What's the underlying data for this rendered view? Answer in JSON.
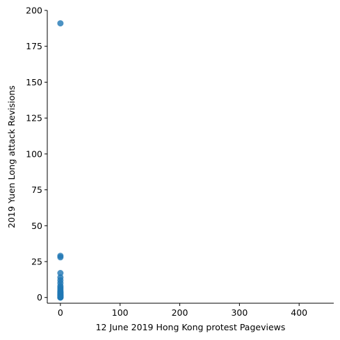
{
  "chart_data": {
    "type": "scatter",
    "xlabel": "12 June 2019 Hong Kong protest Pageviews",
    "ylabel": "2019 Yuen Long attack Revisions",
    "xlim": [
      -22,
      458
    ],
    "ylim": [
      -4,
      200
    ],
    "x_ticks": [
      0,
      100,
      200,
      300,
      400
    ],
    "y_ticks": [
      0,
      25,
      50,
      75,
      100,
      125,
      150,
      175,
      200
    ],
    "x_tick_labels": [
      "0",
      "100",
      "200",
      "300",
      "400"
    ],
    "y_tick_labels": [
      "0",
      "25",
      "50",
      "75",
      "100",
      "125",
      "150",
      "175",
      "200"
    ],
    "grid": false,
    "marker_color": "#1f77b4",
    "series": [
      {
        "x": [
          0,
          0,
          0,
          0,
          0,
          0,
          0,
          0,
          0,
          0,
          0,
          0,
          0,
          0,
          0,
          0,
          0,
          0,
          0,
          0,
          0,
          0,
          0
        ],
        "y": [
          191,
          29,
          28,
          17,
          14,
          12,
          10,
          8,
          7,
          6,
          5,
          4,
          4,
          3,
          3,
          2,
          2,
          1,
          1,
          1,
          0,
          0,
          0
        ]
      }
    ]
  }
}
